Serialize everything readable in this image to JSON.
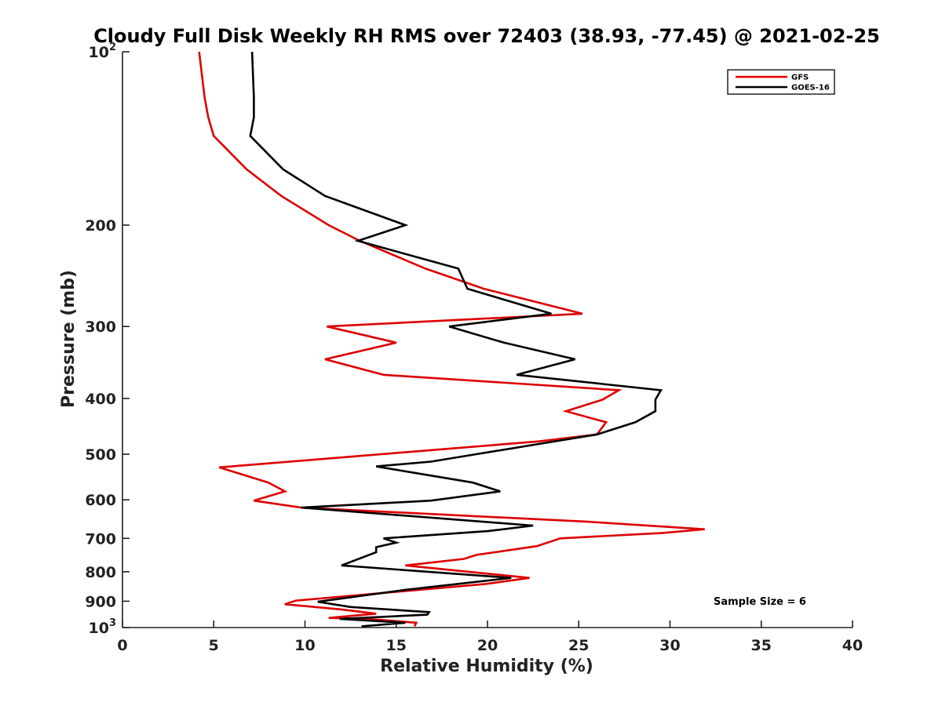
{
  "chart_data": {
    "type": "line",
    "title": "Cloudy Full Disk Weekly RH RMS over 72403 (38.93, -77.45) @ 2021-02-25",
    "xlabel": "Relative Humidity (%)",
    "ylabel": "Pressure (mb)",
    "xlim": [
      0,
      40
    ],
    "ylim": [
      100,
      1000
    ],
    "y_scale": "log",
    "y_reversed": true,
    "grid": false,
    "legend_position": "top-right",
    "x_ticks": [
      0,
      5,
      10,
      15,
      20,
      25,
      30,
      35,
      40
    ],
    "y_ticks": [
      {
        "value": 100,
        "base": "10",
        "exp": "2"
      },
      {
        "value": 200,
        "label": "200"
      },
      {
        "value": 300,
        "label": "300"
      },
      {
        "value": 400,
        "label": "400"
      },
      {
        "value": 500,
        "label": "500"
      },
      {
        "value": 600,
        "label": "600"
      },
      {
        "value": 700,
        "label": "700"
      },
      {
        "value": 800,
        "label": "800"
      },
      {
        "value": 900,
        "label": "900"
      },
      {
        "value": 1000,
        "base": "10",
        "exp": "3"
      }
    ],
    "annotation": "Sample Size = 6",
    "series": [
      {
        "name": "GFS",
        "color": "#dd0000",
        "points": [
          [
            4.2,
            100
          ],
          [
            4.5,
            120
          ],
          [
            4.7,
            130
          ],
          [
            5.0,
            140
          ],
          [
            6.8,
            160
          ],
          [
            8.7,
            178
          ],
          [
            11.3,
            200
          ],
          [
            13.0,
            213
          ],
          [
            16.6,
            238
          ],
          [
            19.8,
            258
          ],
          [
            25.2,
            285
          ],
          [
            11.2,
            300
          ],
          [
            15.0,
            320
          ],
          [
            11.1,
            342
          ],
          [
            14.3,
            364
          ],
          [
            27.2,
            387
          ],
          [
            26.3,
            402
          ],
          [
            24.3,
            421
          ],
          [
            26.5,
            440
          ],
          [
            26.0,
            462
          ],
          [
            22.8,
            475
          ],
          [
            5.3,
            527
          ],
          [
            8.0,
            560
          ],
          [
            8.9,
            580
          ],
          [
            7.2,
            602
          ],
          [
            9.8,
            619
          ],
          [
            25.5,
            655
          ],
          [
            31.9,
            675
          ],
          [
            29.6,
            685
          ],
          [
            24.0,
            700
          ],
          [
            22.7,
            722
          ],
          [
            19.4,
            748
          ],
          [
            18.7,
            760
          ],
          [
            15.5,
            780
          ],
          [
            22.3,
            820
          ],
          [
            19.9,
            840
          ],
          [
            9.5,
            898
          ],
          [
            8.9,
            911
          ],
          [
            12.0,
            930
          ],
          [
            13.9,
            946
          ],
          [
            11.3,
            962
          ],
          [
            13.5,
            966
          ],
          [
            16.1,
            981
          ],
          [
            16.0,
            995
          ]
        ]
      },
      {
        "name": "GOES-16",
        "color": "#000000",
        "points": [
          [
            7.1,
            100
          ],
          [
            7.2,
            120
          ],
          [
            7.2,
            130
          ],
          [
            7.0,
            140
          ],
          [
            8.8,
            160
          ],
          [
            11.1,
            178
          ],
          [
            15.5,
            200
          ],
          [
            12.9,
            213
          ],
          [
            18.4,
            238
          ],
          [
            18.9,
            258
          ],
          [
            23.5,
            285
          ],
          [
            17.9,
            300
          ],
          [
            20.9,
            320
          ],
          [
            24.8,
            342
          ],
          [
            21.6,
            364
          ],
          [
            29.5,
            387
          ],
          [
            29.2,
            402
          ],
          [
            29.2,
            421
          ],
          [
            28.1,
            440
          ],
          [
            26.0,
            462
          ],
          [
            22.8,
            480
          ],
          [
            16.9,
            515
          ],
          [
            13.9,
            525
          ],
          [
            19.2,
            560
          ],
          [
            20.7,
            580
          ],
          [
            16.9,
            602
          ],
          [
            9.8,
            619
          ],
          [
            22.5,
            665
          ],
          [
            20.0,
            680
          ],
          [
            14.3,
            700
          ],
          [
            15.0,
            712
          ],
          [
            13.9,
            725
          ],
          [
            13.9,
            740
          ],
          [
            12.0,
            780
          ],
          [
            21.3,
            820
          ],
          [
            15.5,
            860
          ],
          [
            10.7,
            902
          ],
          [
            12.5,
            921
          ],
          [
            16.8,
            940
          ],
          [
            16.7,
            950
          ],
          [
            11.9,
            966
          ],
          [
            15.5,
            981
          ],
          [
            13.1,
            995
          ]
        ]
      }
    ]
  }
}
